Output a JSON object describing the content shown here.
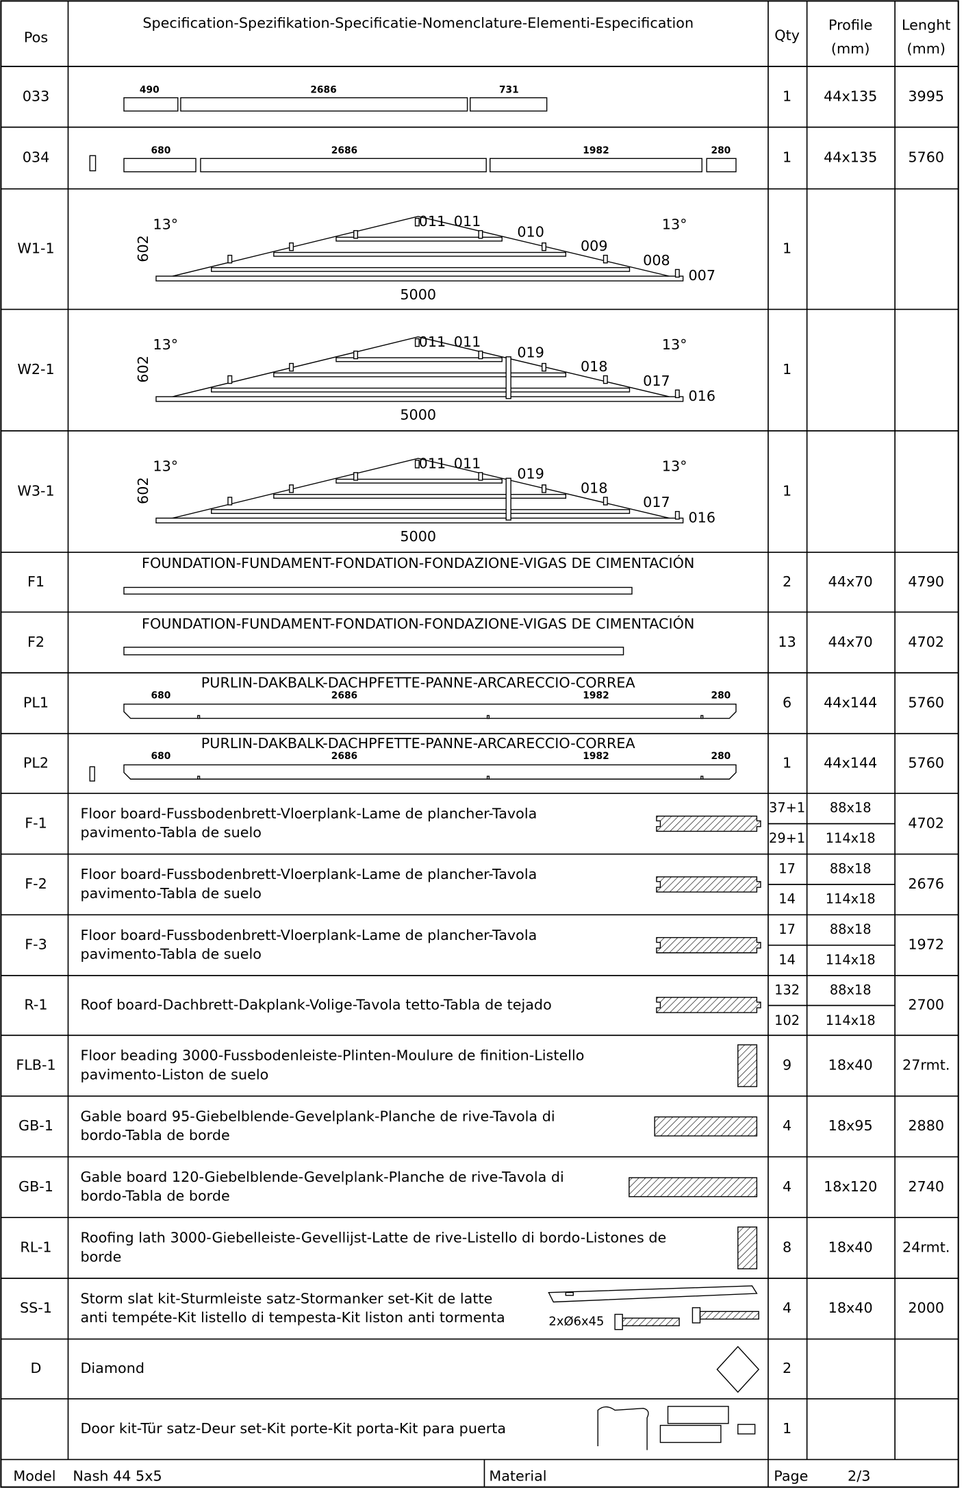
{
  "header": {
    "pos": "Pos",
    "spec": "Specification-Spezifikation-Specificatie-Nomenclature-Elementi-Especification",
    "qty": "Qty",
    "profile": [
      "Profile",
      "(mm)"
    ],
    "length": [
      "Lenght",
      "(mm)"
    ]
  },
  "rows": [
    {
      "pos": "033",
      "qty": "1",
      "profile": "44x135",
      "length": "3995",
      "labels": [
        "490",
        "2686",
        "731"
      ]
    },
    {
      "pos": "034",
      "qty": "1",
      "profile": "44x135",
      "length": "5760",
      "labels": [
        "680",
        "2686",
        "1982",
        "280"
      ]
    },
    {
      "pos": "W1-1",
      "qty": "1",
      "labels": [
        "13°",
        "13°",
        "602",
        "011",
        "011",
        "010",
        "009",
        "008",
        "007",
        "5000"
      ]
    },
    {
      "pos": "W2-1",
      "qty": "1",
      "labels": [
        "13°",
        "13°",
        "602",
        "011",
        "011",
        "019",
        "018",
        "017",
        "016",
        "5000"
      ]
    },
    {
      "pos": "W3-1",
      "qty": "1",
      "labels": [
        "13°",
        "13°",
        "602",
        "011",
        "011",
        "019",
        "018",
        "017",
        "016",
        "5000"
      ]
    },
    {
      "pos": "F1",
      "caption": "FOUNDATION-FUNDAMENT-FONDATION-FONDAZIONE-VIGAS DE CIMENTACIÓN",
      "qty": "2",
      "profile": "44x70",
      "length": "4790"
    },
    {
      "pos": "F2",
      "caption": "FOUNDATION-FUNDAMENT-FONDATION-FONDAZIONE-VIGAS DE CIMENTACIÓN",
      "qty": "13",
      "profile": "44x70",
      "length": "4702"
    },
    {
      "pos": "PL1",
      "caption": "PURLIN-DAKBALK-DACHPFETTE-PANNE-ARCARECCIO-CORREA",
      "qty": "6",
      "profile": "44x144",
      "length": "5760",
      "labels": [
        "680",
        "2686",
        "1982",
        "280"
      ]
    },
    {
      "pos": "PL2",
      "caption": "PURLIN-DAKBALK-DACHPFETTE-PANNE-ARCARECCIO-CORREA",
      "qty": "1",
      "profile": "44x144",
      "length": "5760",
      "labels": [
        "680",
        "2686",
        "1982",
        "280"
      ]
    },
    {
      "pos": "F-1",
      "spec": [
        "Floor board-Fussbodenbrett-Vloerplank-Lame de plancher-Tavola",
        "pavimento-Tabla de suelo"
      ],
      "qty": [
        "37+1",
        "29+1"
      ],
      "profile": [
        "88x18",
        "114x18"
      ],
      "length": "4702"
    },
    {
      "pos": "F-2",
      "spec": [
        "Floor board-Fussbodenbrett-Vloerplank-Lame de plancher-Tavola",
        "pavimento-Tabla de suelo"
      ],
      "qty": [
        "17",
        "14"
      ],
      "profile": [
        "88x18",
        "114x18"
      ],
      "length": "2676"
    },
    {
      "pos": "F-3",
      "spec": [
        "Floor board-Fussbodenbrett-Vloerplank-Lame de plancher-Tavola",
        "pavimento-Tabla de suelo"
      ],
      "qty": [
        "17",
        "14"
      ],
      "profile": [
        "88x18",
        "114x18"
      ],
      "length": "1972"
    },
    {
      "pos": "R-1",
      "spec": [
        "Roof board-Dachbrett-Dakplank-Volige-Tavola tetto-Tabla de tejado"
      ],
      "qty": [
        "132",
        "102"
      ],
      "profile": [
        "88x18",
        "114x18"
      ],
      "length": "2700"
    },
    {
      "pos": "FLB-1",
      "spec": [
        "Floor beading 3000-Fussbodenleiste-Plinten-Moulure de finition-Listello",
        "pavimento-Liston de suelo"
      ],
      "qty": "9",
      "profile": "18x40",
      "length": "27rmt."
    },
    {
      "pos": "GB-1",
      "spec": [
        "Gable board 95-Giebelblende-Gevelplank-Planche de rive-Tavola di",
        "bordo-Tabla de borde"
      ],
      "qty": "4",
      "profile": "18x95",
      "length": "2880"
    },
    {
      "pos": "GB-1",
      "spec": [
        "Gable board 120-Giebelblende-Gevelplank-Planche de rive-Tavola di",
        "bordo-Tabla de borde"
      ],
      "qty": "4",
      "profile": "18x120",
      "length": "2740"
    },
    {
      "pos": "RL-1",
      "spec": [
        "Roofing lath 3000-Giebelleiste-Gevellijst-Latte de rive-Listello di bordo-Listones de",
        "borde"
      ],
      "qty": "8",
      "profile": "18x40",
      "length": "24rmt."
    },
    {
      "pos": "SS-1",
      "spec": [
        "Storm slat kit-Sturmleiste satz-Stormanker set-Kit de latte",
        "anti tempéte-Kit listello di tempesta-Kit liston anti tormenta"
      ],
      "labels": [
        "2xØ6x45"
      ],
      "qty": "4",
      "profile": "18x40",
      "length": "2000"
    },
    {
      "pos": "D",
      "spec": [
        "Diamond"
      ],
      "qty": "2"
    },
    {
      "spec": [
        "Door kit-Tür satz-Deur set-Kit porte-Kit porta-Kit para puerta"
      ],
      "qty": "1"
    }
  ],
  "footer": {
    "model_label": "Model",
    "model": "Nash 44 5x5",
    "material_label": "Material",
    "page_label": "Page",
    "page": "2/3"
  }
}
